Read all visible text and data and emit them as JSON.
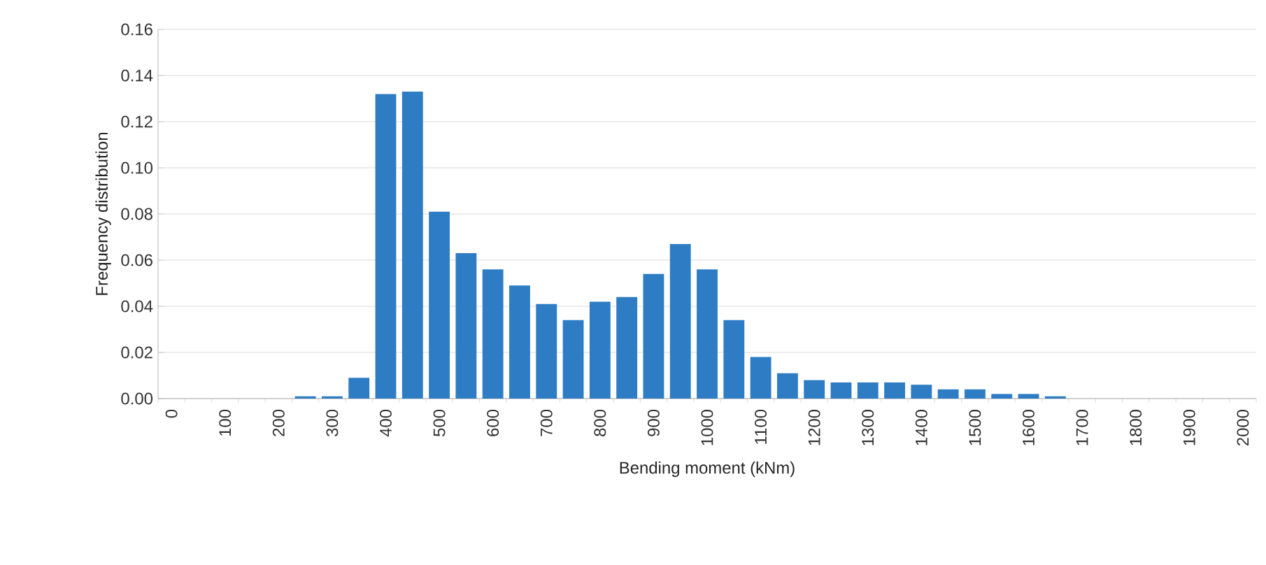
{
  "chart_data": {
    "type": "bar",
    "xlabel": "Bending  moment (kNm)",
    "ylabel": "Frequency distribution",
    "categories": [
      "0",
      null,
      "100",
      null,
      "200",
      null,
      "300",
      null,
      "400",
      null,
      "500",
      null,
      "600",
      null,
      "700",
      null,
      "800",
      null,
      "900",
      null,
      "1000",
      null,
      "1100",
      null,
      "1200",
      null,
      "1300",
      null,
      "1400",
      null,
      "1500",
      null,
      "1600",
      null,
      "1700",
      null,
      "1800",
      null,
      "1900",
      null,
      "2000"
    ],
    "values": [
      0,
      0,
      0,
      0,
      0,
      0.001,
      0.001,
      0.009,
      0.132,
      0.133,
      0.081,
      0.063,
      0.056,
      0.049,
      0.041,
      0.034,
      0.042,
      0.044,
      0.054,
      0.067,
      0.056,
      0.034,
      0.018,
      0.011,
      0.008,
      0.007,
      0.007,
      0.007,
      0.006,
      0.004,
      0.004,
      0.002,
      0.002,
      0.001,
      0,
      0,
      0,
      0,
      0,
      0,
      0
    ],
    "color": "#2e7dc4",
    "ylim": [
      0,
      0.16
    ],
    "yticks": [
      {
        "value": 0,
        "label": "0.00"
      },
      {
        "value": 0.02,
        "label": "0.02"
      },
      {
        "value": 0.04,
        "label": "0.04"
      },
      {
        "value": 0.06,
        "label": "0.06"
      },
      {
        "value": 0.08,
        "label": "0.08"
      },
      {
        "value": 0.1,
        "label": "0.10"
      },
      {
        "value": 0.12,
        "label": "0.12"
      },
      {
        "value": 0.14,
        "label": "0.14"
      },
      {
        "value": 0.16,
        "label": "0.16"
      }
    ],
    "grid": "y"
  }
}
